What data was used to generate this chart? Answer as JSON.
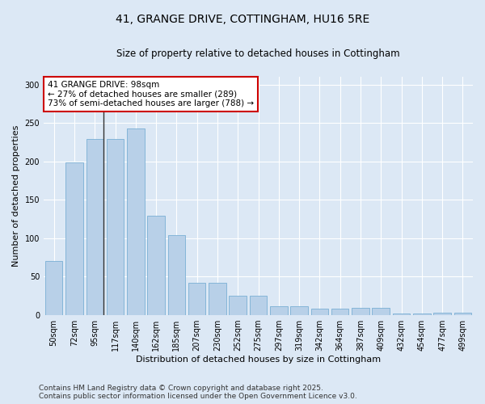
{
  "title_line1": "41, GRANGE DRIVE, COTTINGHAM, HU16 5RE",
  "title_line2": "Size of property relative to detached houses in Cottingham",
  "xlabel": "Distribution of detached houses by size in Cottingham",
  "ylabel": "Number of detached properties",
  "categories": [
    "50sqm",
    "72sqm",
    "95sqm",
    "117sqm",
    "140sqm",
    "162sqm",
    "185sqm",
    "207sqm",
    "230sqm",
    "252sqm",
    "275sqm",
    "297sqm",
    "319sqm",
    "342sqm",
    "364sqm",
    "387sqm",
    "409sqm",
    "432sqm",
    "454sqm",
    "477sqm",
    "499sqm"
  ],
  "values": [
    70,
    199,
    229,
    229,
    243,
    129,
    104,
    42,
    42,
    25,
    25,
    12,
    12,
    8,
    8,
    10,
    10,
    2,
    2,
    3,
    3
  ],
  "bar_color": "#b8d0e8",
  "bar_edge_color": "#7aafd4",
  "vline_color": "#333333",
  "annotation_text": "41 GRANGE DRIVE: 98sqm\n← 27% of detached houses are smaller (289)\n73% of semi-detached houses are larger (788) →",
  "annotation_box_color": "#ffffff",
  "annotation_box_edge_color": "#cc0000",
  "footer_line1": "Contains HM Land Registry data © Crown copyright and database right 2025.",
  "footer_line2": "Contains public sector information licensed under the Open Government Licence v3.0.",
  "bg_color": "#dce8f5",
  "plot_bg_color": "#dce8f5",
  "ylim": [
    0,
    310
  ],
  "yticks": [
    0,
    50,
    100,
    150,
    200,
    250,
    300
  ],
  "title_fontsize": 10,
  "subtitle_fontsize": 8.5,
  "axis_label_fontsize": 8,
  "tick_fontsize": 7,
  "annotation_fontsize": 7.5,
  "footer_fontsize": 6.5
}
